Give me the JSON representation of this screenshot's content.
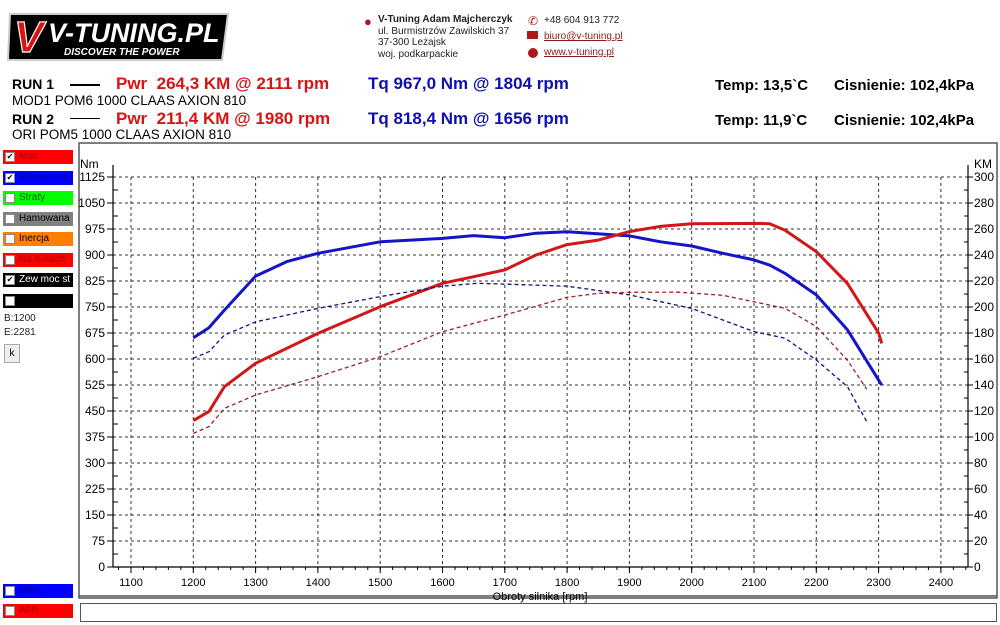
{
  "header": {
    "logo_text": "V-TUNING.PL",
    "logo_tagline": "DISCOVER THE POWER",
    "company": "V-Tuning Adam Majcherczyk",
    "address_lines": [
      "ul. Burmistrzów Zawilskich 37",
      "37-300 Leżajsk",
      "woj. podkarpackie"
    ],
    "phone": "+48 604 913 772",
    "email": "biuro@v-tuning.pl",
    "website": "www.v-tuning.pl",
    "icons": {
      "location": "map-pin-icon",
      "phone": "phone-icon",
      "email": "envelope-icon",
      "web": "globe-icon"
    }
  },
  "runs": [
    {
      "label": "RUN 1",
      "pwr": "Pwr  264,3 KM @ 2111 rpm",
      "tq": "Tq 967,0 Nm @ 1804 rpm",
      "temp": "Temp: 13,5`C",
      "pressure": "Cisnienie: 102,4kPa",
      "description": "MOD1 POM6 1000 CLAAS AXION 810"
    },
    {
      "label": "RUN 2",
      "pwr": "Pwr  211,4 KM @ 1980 rpm",
      "tq": "Tq 818,4 Nm @ 1656 rpm",
      "temp": "Temp: 11,9`C",
      "pressure": "Cisnienie: 102,4kPa",
      "description": "ORI POM5 1000 CLAAS AXION 810"
    }
  ],
  "legend": [
    {
      "label": "Moc",
      "checked": true,
      "color": "#ff0000",
      "text_color": "#a00000"
    },
    {
      "label": "Moment obr",
      "checked": true,
      "color": "#0000ff",
      "text_color": "#000090"
    },
    {
      "label": "Straty",
      "checked": false,
      "color": "#00ff00",
      "text_color": "#006000"
    },
    {
      "label": "Hamowana",
      "checked": false,
      "color": "#808080",
      "text_color": "#000000"
    },
    {
      "label": "Inercja",
      "checked": false,
      "color": "#ff8000",
      "text_color": "#000000"
    },
    {
      "label": "Na Kolach",
      "checked": false,
      "color": "#ff0000",
      "text_color": "#a00000"
    },
    {
      "label": "Zew moc st",
      "checked": true,
      "color": "#000000",
      "text_color": "#ffffff"
    },
    {
      "label": "",
      "checked": false,
      "color": "#000000",
      "text_color": "#ffffff"
    }
  ],
  "range": {
    "begin": "B:1200",
    "end": "E:2281",
    "button": "k"
  },
  "bottom_legend": [
    {
      "label": "MAP",
      "checked": false,
      "color": "#0000ff",
      "text_color": "#000090"
    },
    {
      "label": "AFR",
      "checked": false,
      "color": "#ff0000",
      "text_color": "#a00000"
    }
  ],
  "chart_data": {
    "type": "line",
    "xlabel": "Obroty silnika [rpm]",
    "ylabel_left": "Nm",
    "ylabel_right": "KM",
    "xlim": [
      1071,
      2443
    ],
    "ylim_left": [
      0,
      1125
    ],
    "ylim_right": [
      0,
      300
    ],
    "x_ticks": [
      1100,
      1200,
      1300,
      1400,
      1500,
      1600,
      1700,
      1800,
      1900,
      2000,
      2100,
      2200,
      2300,
      2400
    ],
    "y_ticks_left": [
      0,
      75,
      150,
      225,
      300,
      375,
      450,
      525,
      600,
      675,
      750,
      825,
      900,
      975,
      1050,
      1125
    ],
    "y_ticks_right": [
      0,
      20,
      40,
      60,
      80,
      100,
      120,
      140,
      160,
      180,
      200,
      220,
      240,
      260,
      280,
      300
    ],
    "grid": true,
    "series": [
      {
        "run": "RUN 1",
        "quantity": "torque",
        "axis": "left",
        "color": "#1414c8",
        "style": "solid",
        "x": [
          1200,
          1225,
          1250,
          1300,
          1350,
          1400,
          1500,
          1600,
          1650,
          1700,
          1750,
          1800,
          1900,
          1950,
          2000,
          2050,
          2100,
          2125,
          2150,
          2200,
          2250,
          2300,
          2305
        ],
        "y": [
          661,
          690,
          741,
          839,
          881,
          905,
          938,
          948,
          956,
          950,
          963,
          967,
          955,
          938,
          926,
          905,
          886,
          871,
          847,
          785,
          684,
          539,
          525
        ]
      },
      {
        "run": "RUN 1",
        "quantity": "power",
        "axis": "right",
        "color": "#d01818",
        "style": "solid",
        "x": [
          1200,
          1225,
          1250,
          1300,
          1400,
          1500,
          1600,
          1650,
          1700,
          1750,
          1800,
          1850,
          1900,
          1950,
          2000,
          2111,
          2125,
          2150,
          2200,
          2250,
          2300,
          2305
        ],
        "y": [
          112.6,
          119.5,
          138.7,
          156.7,
          179.7,
          200.2,
          218.2,
          223.3,
          228.5,
          240,
          248,
          251.5,
          258,
          262,
          264,
          264.3,
          264,
          259,
          242.6,
          218,
          180,
          172
        ]
      },
      {
        "run": "RUN 2",
        "quantity": "torque",
        "axis": "left",
        "color": "#101080",
        "style": "dashed",
        "x": [
          1200,
          1225,
          1250,
          1300,
          1400,
          1500,
          1600,
          1656,
          1700,
          1800,
          1900,
          2000,
          2100,
          2150,
          2200,
          2250,
          2281
        ],
        "y": [
          602,
          621,
          669,
          707,
          746,
          780,
          810,
          818.4,
          816,
          810,
          785,
          746,
          679,
          660,
          597,
          520,
          419
        ]
      },
      {
        "run": "RUN 2",
        "quantity": "power",
        "axis": "right",
        "color": "#a02020",
        "style": "dashed",
        "x": [
          1200,
          1225,
          1250,
          1300,
          1400,
          1500,
          1600,
          1700,
          1800,
          1850,
          1900,
          1980,
          2050,
          2100,
          2150,
          2200,
          2250,
          2281
        ],
        "y": [
          102.8,
          108,
          122,
          132.3,
          146.4,
          161.8,
          181,
          193.8,
          207.5,
          210.5,
          211.3,
          211.4,
          209,
          204,
          199,
          185,
          159,
          136.7
        ]
      }
    ]
  }
}
